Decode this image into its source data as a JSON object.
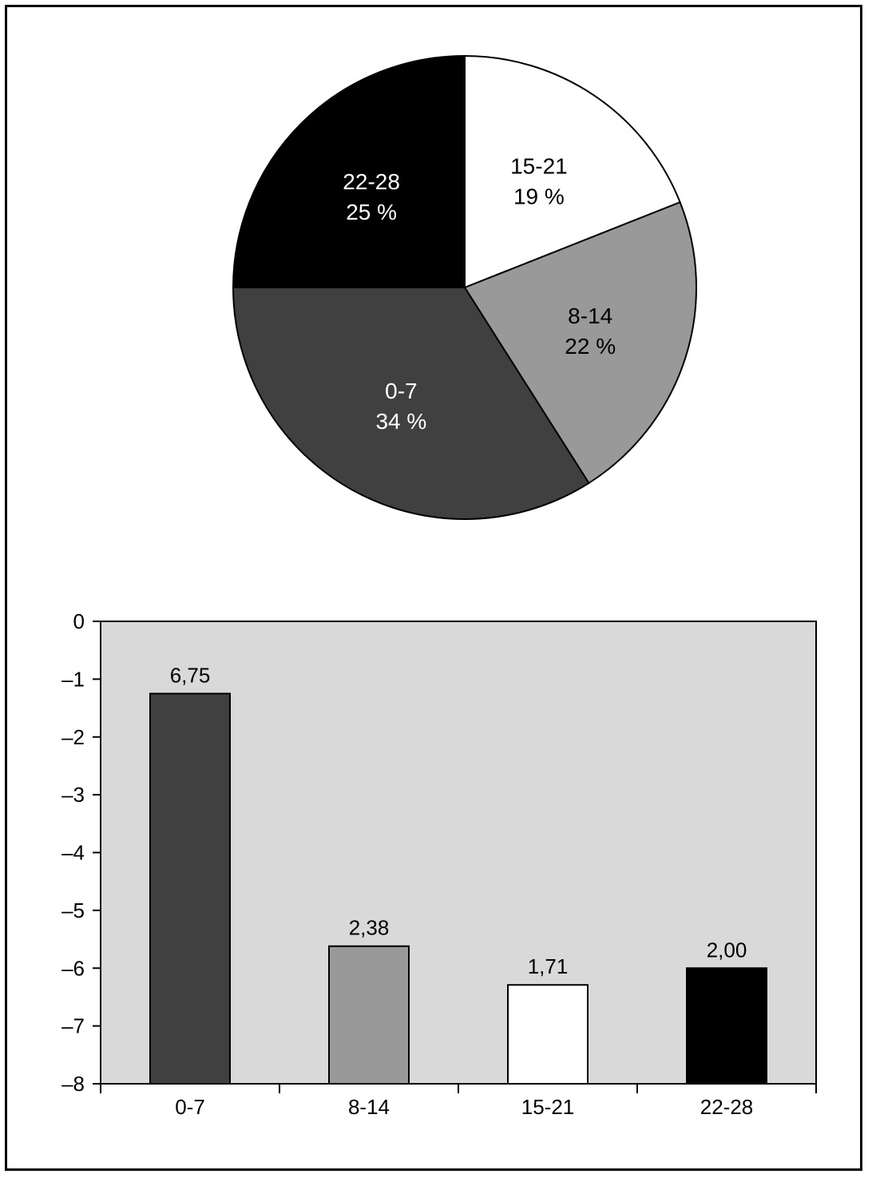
{
  "colors": {
    "slice_0_7": "#404040",
    "slice_8_14": "#999999",
    "slice_15_21": "#ffffff",
    "slice_22_28": "#000000",
    "plot_background": "#d9d9d9"
  },
  "chart_data": [
    {
      "type": "pie",
      "slices": [
        {
          "label": "15-21",
          "percent_label": "19 %",
          "value": 19,
          "color": "#ffffff",
          "text_color": "#000000"
        },
        {
          "label": "8-14",
          "percent_label": "22 %",
          "value": 22,
          "color": "#999999",
          "text_color": "#000000"
        },
        {
          "label": "0-7",
          "percent_label": "34 %",
          "value": 34,
          "color": "#404040",
          "text_color": "#ffffff"
        },
        {
          "label": "22-28",
          "percent_label": "25 %",
          "value": 25,
          "color": "#000000",
          "text_color": "#ffffff"
        }
      ],
      "start": "12 o'clock",
      "direction": "clockwise"
    },
    {
      "type": "bar",
      "categories": [
        "0-7",
        "8-14",
        "15-21",
        "22-28"
      ],
      "values": [
        -1.25,
        -5.62,
        -6.29,
        -6.0
      ],
      "data_labels": [
        "6,75",
        "2,38",
        "1,71",
        "2,00"
      ],
      "colors": [
        "#404040",
        "#999999",
        "#ffffff",
        "#000000"
      ],
      "ylim": [
        -8,
        0
      ],
      "yticks": [
        0,
        -1,
        -2,
        -3,
        -4,
        -5,
        -6,
        -7,
        -8
      ],
      "ytick_labels": [
        "0",
        "–1",
        "–2",
        "–3",
        "–4",
        "–5",
        "–6",
        "–7",
        "–8"
      ],
      "grid": false,
      "bar_baseline": -8
    }
  ]
}
